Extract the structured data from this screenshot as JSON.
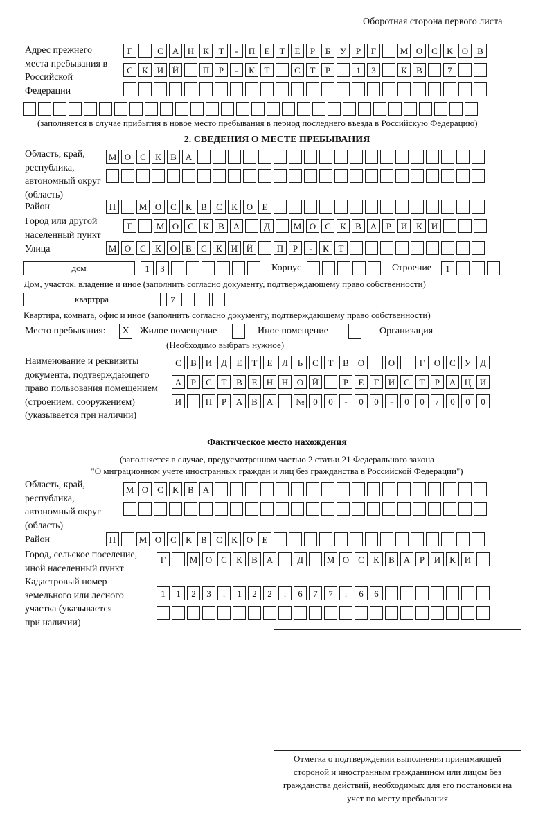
{
  "header": "Оборотная сторона первого листа",
  "previous_address": {
    "label": "Адрес прежнего места пребывания в Российской Федерации",
    "rows": [
      "Г САНКТ-ПЕТЕРБУРГ МОСКОВ",
      "СКИЙ ПР-КТ СТР 13 КВ 7",
      "",
      ""
    ],
    "note": "(заполняется в случае прибытия в новое место пребывания в период последнего въезда в Российскую Федерацию)"
  },
  "section2": {
    "title": "2. СВЕДЕНИЯ О МЕСТЕ ПРЕБЫВАНИЯ",
    "region_label": "Область, край, республика, автономный округ (область)",
    "region_rows": [
      "МОСКВА",
      ""
    ],
    "district_label": "Район",
    "district": "П МОСКВСКОЕ",
    "city_label": "Город или другой населенный пункт",
    "city": "Г МОСКВА Д МОСКВАРИКИ",
    "street_label": "Улица",
    "street": "МОСКОВСКИЙ ПР-КТ",
    "house_type": "дом",
    "house_number": "13",
    "korpus_label": "Корпус",
    "korpus": "",
    "building_label": "Строение",
    "building": "1",
    "house_note": "Дом, участок, владение и иное (заполнить согласно документу, подтверждающему право собственности)",
    "apartment_type": "квартрра",
    "apartment_number": "7",
    "apartment_note": "Квартира, комната, офис и иное (заполнить согласно документу, подтверждающему право собственности)",
    "stay_place_label": "Место пребывания:",
    "options": [
      {
        "label": "Жилое помещение",
        "mark": "X"
      },
      {
        "label": "Иное помещение",
        "mark": ""
      },
      {
        "label": "Организация",
        "mark": ""
      }
    ],
    "options_note": "(Необходимо выбрать нужное)",
    "document_label": "Наименование и реквизиты документа, подтверждающего право пользования помещением (строением, сооружением) (указывается при наличии)",
    "document_rows": [
      "СВИДЕТЕЛЬСТВО О ГОСУД",
      "АРСТВЕННОЙ РЕГИСТРАЦИ",
      "И ПРАВА №00-00-00/000"
    ]
  },
  "actual": {
    "title": "Фактическое место нахождения",
    "note1": "(заполняется в случае, предусмотренном частью 2 статьи 21 Федерального закона",
    "note2": "\"О миграционном учете иностранных граждан и лиц без гражданства в Российской Федерации\")",
    "region_label": "Область, край, республика, автономный округ (область)",
    "region_rows": [
      "МОСКВА",
      ""
    ],
    "district_label": "Район",
    "district": "П МОСКВСКОЕ",
    "city_label": "Город, сельское поселение, иной населенный пункт",
    "city": "Г МОСКВА Д МОСКВАРИКИ",
    "cadastral_label": "Кадастровый номер земельного или лесного участка (указывается при наличии)",
    "cadastral_rows": [
      "1123:122:677:66",
      ""
    ]
  },
  "stamp_caption": "Отметка о подтверждении выполнения принимающей стороной и иностранным гражданином или лицом без гражданства действий, необходимых для его постановки на учет по месту пребывания"
}
